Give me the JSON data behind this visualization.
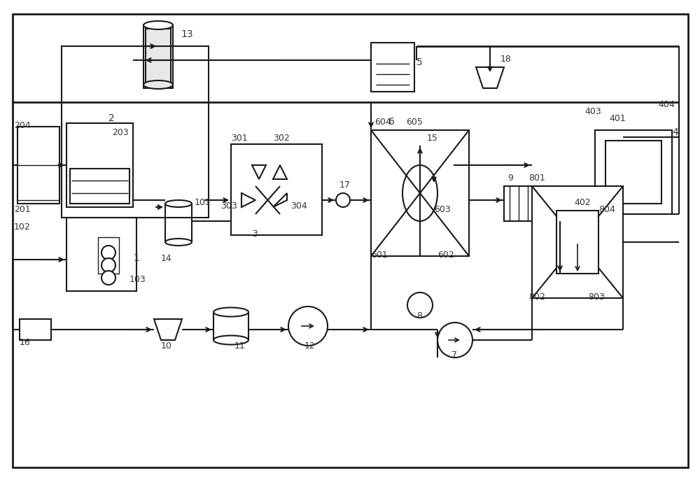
{
  "bg_color": "#ffffff",
  "line_color": "#1a1a1a",
  "fig_width": 10.0,
  "fig_height": 6.86,
  "dpi": 100
}
